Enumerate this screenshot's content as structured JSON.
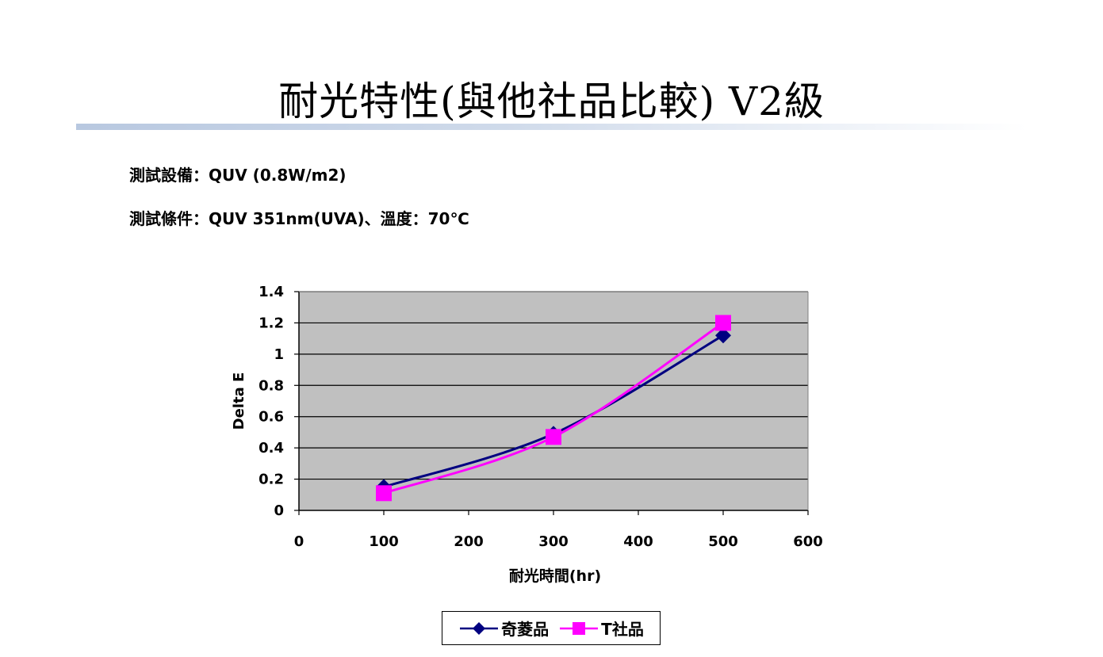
{
  "slide": {
    "title": "耐光特性(與他社品比較) V2級",
    "info_lines": [
      {
        "label": "測試設備：",
        "value": "QUV (0.8W/m2)"
      },
      {
        "label": "測試條件：",
        "value": "QUV 351nm(UVA)、溫度：70℃"
      }
    ]
  },
  "chart_data": {
    "type": "line",
    "title": "",
    "xlabel": "耐光時間(hr)",
    "ylabel": "Delta E",
    "xlim": [
      0,
      600
    ],
    "ylim": [
      0,
      1.4
    ],
    "x_ticks": [
      "0",
      "100",
      "200",
      "300",
      "400",
      "500",
      "600"
    ],
    "y_ticks": [
      "0",
      "0.2",
      "0.4",
      "0.6",
      "0.8",
      "1",
      "1.2",
      "1.4"
    ],
    "grid": true,
    "plot_background": "#c0c0c0",
    "legend_position": "bottom",
    "series": [
      {
        "name": "奇菱品",
        "x": [
          100,
          300,
          500
        ],
        "y": [
          0.15,
          0.49,
          1.12
        ],
        "color": "#000080",
        "marker": "diamond"
      },
      {
        "name": "T社品",
        "x": [
          100,
          300,
          500
        ],
        "y": [
          0.11,
          0.47,
          1.2
        ],
        "color": "#ff00ff",
        "marker": "square"
      }
    ]
  }
}
